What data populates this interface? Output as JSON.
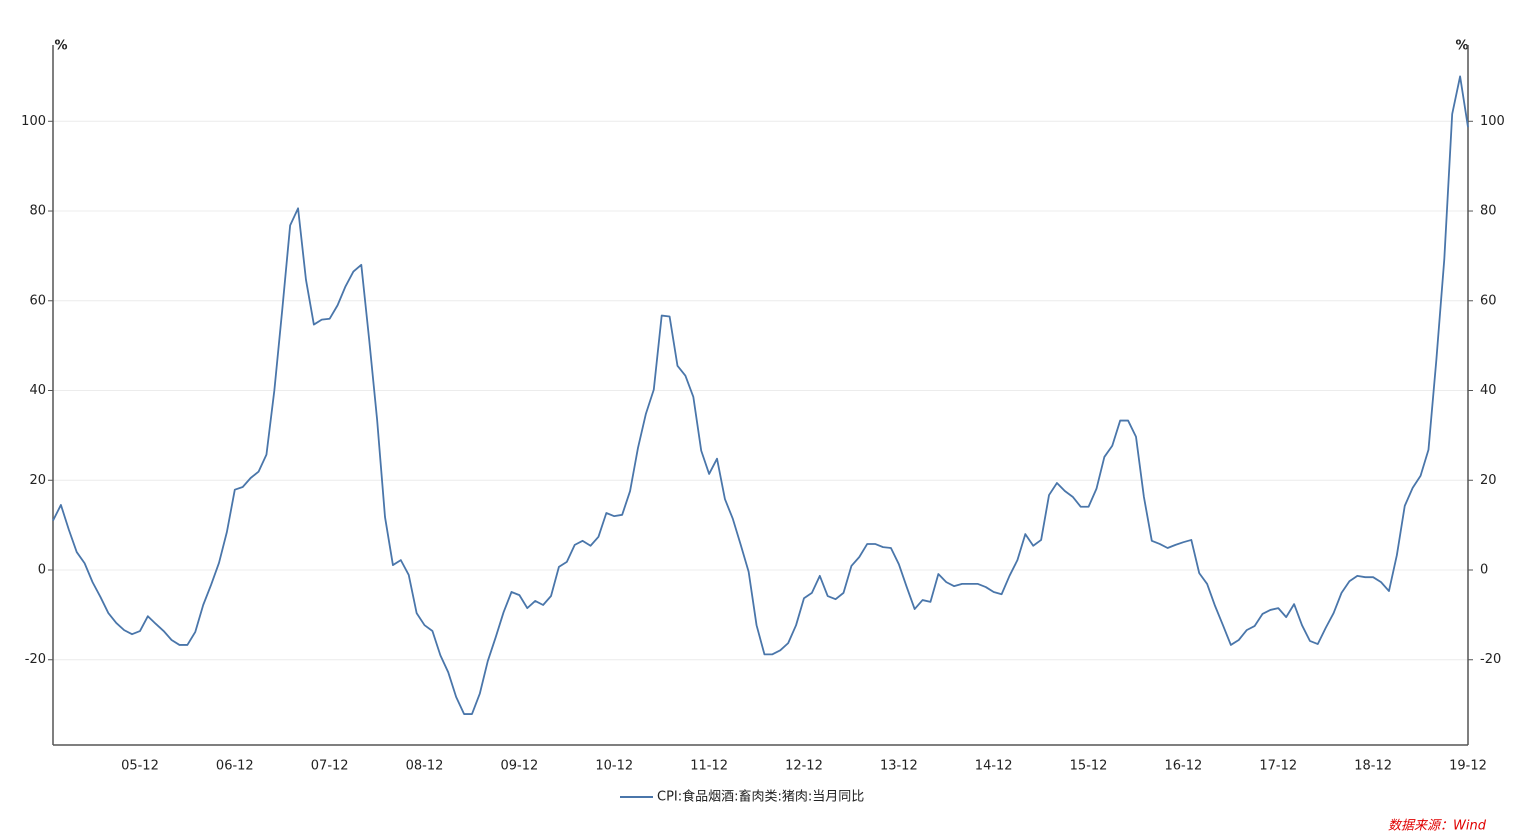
{
  "chart_data": {
    "type": "line",
    "categories": [
      null,
      null,
      null,
      null,
      null,
      null,
      null,
      null,
      null,
      null,
      null,
      "05-12",
      null,
      null,
      null,
      null,
      null,
      null,
      null,
      null,
      null,
      null,
      null,
      "06-12",
      null,
      null,
      null,
      null,
      null,
      null,
      null,
      null,
      null,
      null,
      null,
      "07-12",
      null,
      null,
      null,
      null,
      null,
      null,
      null,
      null,
      null,
      null,
      null,
      "08-12",
      null,
      null,
      null,
      null,
      null,
      null,
      null,
      null,
      null,
      null,
      null,
      "09-12",
      null,
      null,
      null,
      null,
      null,
      null,
      null,
      null,
      null,
      null,
      null,
      "10-12",
      null,
      null,
      null,
      null,
      null,
      null,
      null,
      null,
      null,
      null,
      null,
      "11-12",
      null,
      null,
      null,
      null,
      null,
      null,
      null,
      null,
      null,
      null,
      null,
      "12-12",
      null,
      null,
      null,
      null,
      null,
      null,
      null,
      null,
      null,
      null,
      null,
      "13-12",
      null,
      null,
      null,
      null,
      null,
      null,
      null,
      null,
      null,
      null,
      null,
      "14-12",
      null,
      null,
      null,
      null,
      null,
      null,
      null,
      null,
      null,
      null,
      null,
      "15-12",
      null,
      null,
      null,
      null,
      null,
      null,
      null,
      null,
      null,
      null,
      null,
      "16-12",
      null,
      null,
      null,
      null,
      null,
      null,
      null,
      null,
      null,
      null,
      null,
      "17-12",
      null,
      null,
      null,
      null,
      null,
      null,
      null,
      null,
      null,
      null,
      null,
      "18-12",
      null,
      null,
      null,
      null,
      null,
      null,
      null,
      null,
      null,
      null,
      null,
      "19-12"
    ],
    "series": [
      {
        "name": "CPI:食品烟酒:畜肉类:猪肉:当月同比",
        "color": "#4a76aa",
        "values": [
          11,
          14.5,
          9,
          4,
          1.5,
          -2.7,
          -6,
          -9.6,
          -11.8,
          -13.4,
          -14.3,
          -13.6,
          -10.3,
          -12,
          -13.6,
          -15.6,
          -16.7,
          -16.7,
          -13.8,
          -7.8,
          -3.3,
          1.6,
          8.5,
          17.9,
          18.5,
          20.5,
          21.9,
          25.7,
          40,
          58,
          76.8,
          80.6,
          64.7,
          54.7,
          55.8,
          56,
          59,
          63.2,
          66.5,
          68,
          51.3,
          33.5,
          11.8,
          1.1,
          2.2,
          -1.1,
          -9.6,
          -12.3,
          -13.6,
          -19,
          -22.8,
          -28.3,
          -32.1,
          -32.1,
          -27.5,
          -20.3,
          -15,
          -9.4,
          -4.9,
          -5.6,
          -8.5,
          -6.9,
          -7.8,
          -5.8,
          0.7,
          1.8,
          5.6,
          6.5,
          5.4,
          7.4,
          12.7,
          12,
          12.3,
          17.6,
          27.2,
          34.8,
          40.2,
          56.7,
          56.5,
          45.5,
          43.3,
          38.6,
          26.6,
          21.4,
          24.8,
          15.8,
          11.4,
          5.6,
          -0.4,
          -12.3,
          -18.8,
          -18.8,
          -17.9,
          -16.3,
          -12.3,
          -6.3,
          -5.1,
          -1.3,
          -5.8,
          -6.5,
          -5.1,
          0.9,
          2.9,
          5.8,
          5.8,
          5.1,
          4.9,
          1.3,
          -3.8,
          -8.7,
          -6.7,
          -7.1,
          -0.9,
          -2.7,
          -3.6,
          -3.1,
          -3.1,
          -3.1,
          -3.8,
          -4.9,
          -5.4,
          -1.3,
          2.2,
          8,
          5.4,
          6.7,
          16.7,
          19.4,
          17.6,
          16.3,
          14.1,
          14.1,
          18.1,
          25.2,
          27.7,
          33.3,
          33.3,
          29.7,
          16.3,
          6.5,
          5.8,
          4.9,
          5.6,
          6.2,
          6.7,
          -0.7,
          -3.1,
          -8,
          -12.3,
          -16.7,
          -15.6,
          -13.4,
          -12.5,
          -9.8,
          -8.9,
          -8.5,
          -10.5,
          -7.6,
          -12.3,
          -15.8,
          -16.5,
          -12.9,
          -9.6,
          -5.1,
          -2.5,
          -1.3,
          -1.6,
          -1.6,
          -2.7,
          -4.7,
          3.3,
          14.3,
          18.3,
          21,
          26.8,
          46.9,
          69.2,
          101.6,
          110,
          98.7
        ]
      }
    ],
    "ylim": [
      -39,
      117
    ],
    "yticks": [
      -20,
      0,
      20,
      40,
      60,
      80,
      100
    ],
    "y2lim": [
      -39,
      117
    ],
    "y2ticks": [
      -20,
      0,
      20,
      40,
      60,
      80,
      100
    ],
    "ylabel": "%",
    "y2label": "%",
    "grid": true,
    "legend": "bottom",
    "source": "数据来源：Wind"
  }
}
